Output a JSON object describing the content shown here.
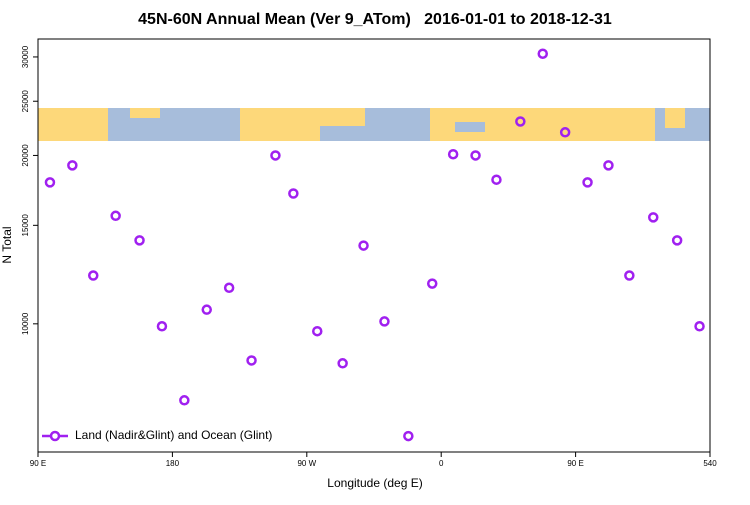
{
  "chart_data": {
    "type": "scatter",
    "title": "45N-60N Annual Mean (Ver 9_ATom)   2016-01-01 to 2018-12-31",
    "xlabel": "Longitude (deg E)",
    "ylabel": "N Total",
    "xlim": [
      90,
      540
    ],
    "xticks": [
      {
        "value": 90,
        "label": "90 E"
      },
      180,
      {
        "value": 270,
        "label": "90 W"
      },
      {
        "value": 360,
        "label": "0"
      },
      {
        "value": 450,
        "label": "90 E"
      },
      540
    ],
    "ylim": [
      5900,
      32300
    ],
    "ylog": true,
    "yticks": [
      10000,
      15000,
      20000,
      25000,
      30000
    ],
    "legend": "bottom-left",
    "series": [
      {
        "name": "Land (Nadir&Glint) and Ocean (Glint)",
        "color": "#a020f0",
        "x": [
          98,
          113,
          127,
          142,
          158,
          173,
          188,
          203,
          218,
          233,
          249,
          261,
          277,
          294,
          308,
          322,
          338,
          354,
          368,
          383,
          397,
          413,
          428,
          443,
          458,
          472,
          486,
          502,
          518,
          533
        ],
        "values": [
          17900,
          19200,
          12200,
          15600,
          14100,
          9900,
          7300,
          10600,
          11600,
          8600,
          20000,
          17100,
          9700,
          8500,
          13800,
          10100,
          6300,
          11800,
          20100,
          20000,
          18100,
          23000,
          30400,
          22000,
          17900,
          19200,
          12200,
          15500,
          14100,
          9900
        ]
      }
    ]
  }
}
